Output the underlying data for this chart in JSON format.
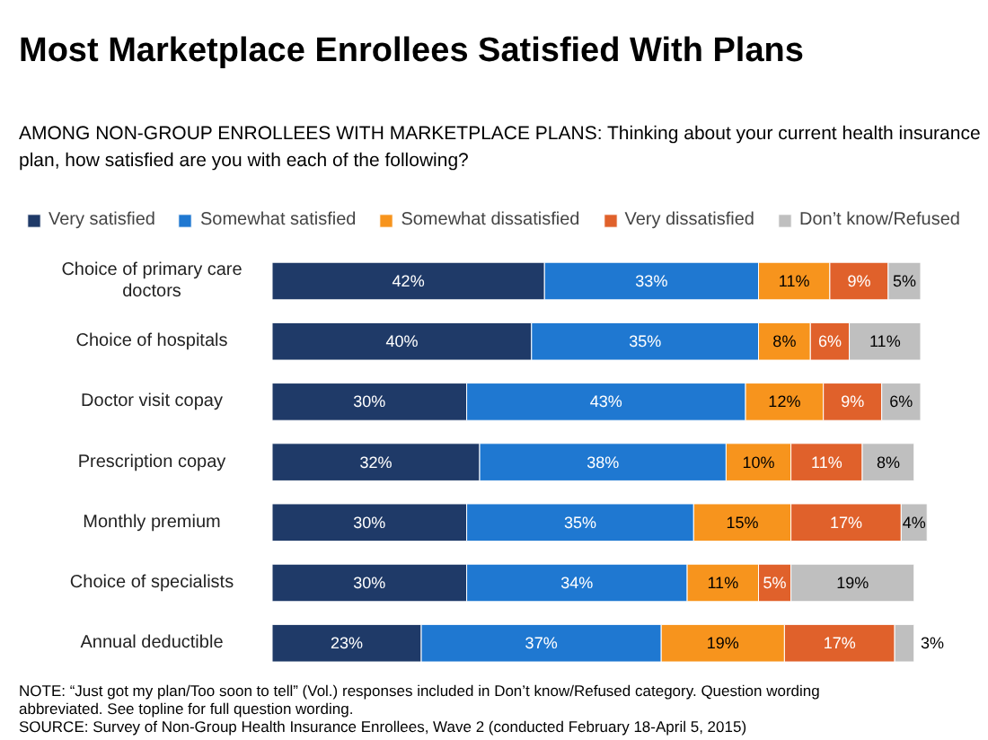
{
  "chart_data": {
    "type": "bar",
    "orientation": "horizontal",
    "stacked": true,
    "legend": "top",
    "tick_labels": "y",
    "title": "Most Marketplace Enrollees Satisfied With Plans",
    "subtitle": "AMONG NON-GROUP ENROLLEES WITH MARKETPLACE PLANS: Thinking about your current health insurance plan, how satisfied are you with each of the following?",
    "categories": [
      "Choice of primary care doctors",
      "Choice of hospitals",
      "Doctor visit copay",
      "Prescription copay",
      "Monthly premium",
      "Choice of specialists",
      "Annual deductible"
    ],
    "series": [
      {
        "name": "Very satisfied",
        "color": "#1f3a68",
        "values": [
          42,
          40,
          30,
          32,
          30,
          30,
          23
        ],
        "value_labels": [
          "42%",
          "40%",
          "30%",
          "32%",
          "30%",
          "30%",
          "23%"
        ]
      },
      {
        "name": "Somewhat satisfied",
        "color": "#1f78d1",
        "values": [
          33,
          35,
          43,
          38,
          35,
          34,
          37
        ],
        "value_labels": [
          "33%",
          "35%",
          "43%",
          "38%",
          "35%",
          "34%",
          "37%"
        ]
      },
      {
        "name": "Somewhat dissatisfied",
        "color": "#f7941d",
        "values": [
          11,
          8,
          12,
          10,
          15,
          11,
          19
        ],
        "value_labels": [
          "11%",
          "8%",
          "12%",
          "10%",
          "15%",
          "11%",
          "19%"
        ]
      },
      {
        "name": "Very dissatisfied",
        "color": "#e0612b",
        "values": [
          9,
          6,
          9,
          11,
          17,
          5,
          17
        ],
        "value_labels": [
          "9%",
          "6%",
          "9%",
          "11%",
          "17%",
          "5%",
          "17%"
        ]
      },
      {
        "name": "Don’t know/Refused",
        "color": "#bfbfbf",
        "values": [
          5,
          11,
          6,
          8,
          4,
          19,
          3
        ],
        "value_labels": [
          "5%",
          "11%",
          "6%",
          "8%",
          "4%",
          "19%",
          "3%"
        ]
      }
    ],
    "annotations": [
      "NOTE: “Just got my plan/Too soon to tell” (Vol.) responses included in Don’t know/Refused category. Question wording abbreviated.  See topline for full question wording.",
      "SOURCE: Survey of Non-Group Health Insurance Enrollees, Wave 2 (conducted February 18-April 5, 2015)"
    ]
  }
}
